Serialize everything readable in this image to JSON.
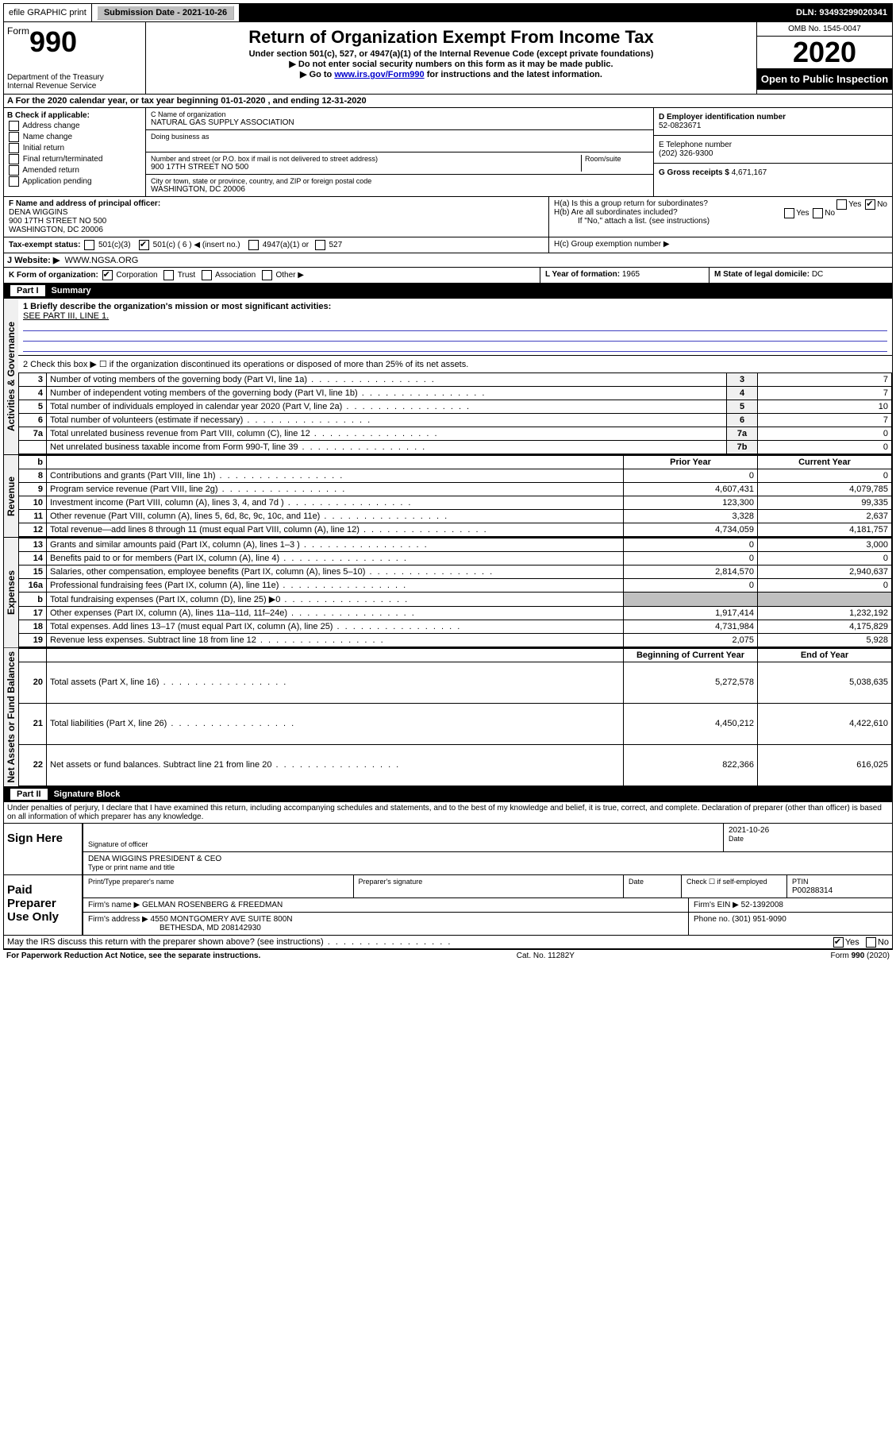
{
  "topbar": {
    "efile": "efile GRAPHIC print",
    "sub_label": "Submission Date - 2021-10-26",
    "dln": "DLN: 93493299020341"
  },
  "header": {
    "form_label": "Form",
    "form_number": "990",
    "dept1": "Department of the Treasury",
    "dept2": "Internal Revenue Service",
    "title": "Return of Organization Exempt From Income Tax",
    "subtitle": "Under section 501(c), 527, or 4947(a)(1) of the Internal Revenue Code (except private foundations)",
    "warn1": "▶ Do not enter social security numbers on this form as it may be made public.",
    "warn2a": "▶ Go to ",
    "warn2_link": "www.irs.gov/Form990",
    "warn2b": " for instructions and the latest information.",
    "omb": "OMB No. 1545-0047",
    "year": "2020",
    "inspect": "Open to Public Inspection"
  },
  "lineA": "A For the 2020 calendar year, or tax year beginning 01-01-2020   , and ending 12-31-2020",
  "boxB": {
    "label": "B Check if applicable:",
    "opts": [
      "Address change",
      "Name change",
      "Initial return",
      "Final return/terminated",
      "Amended return",
      "Application pending"
    ]
  },
  "boxC": {
    "name_label": "C Name of organization",
    "name": "NATURAL GAS SUPPLY ASSOCIATION",
    "dba_label": "Doing business as",
    "addr_label": "Number and street (or P.O. box if mail is not delivered to street address)",
    "room_label": "Room/suite",
    "addr": "900 17TH STREET NO 500",
    "city_label": "City or town, state or province, country, and ZIP or foreign postal code",
    "city": "WASHINGTON, DC  20006"
  },
  "boxD": {
    "label": "D Employer identification number",
    "value": "52-0823671"
  },
  "boxE": {
    "label": "E Telephone number",
    "value": "(202) 326-9300"
  },
  "boxG": {
    "label": "G Gross receipts $",
    "value": "4,671,167"
  },
  "boxF": {
    "label": "F Name and address of principal officer:",
    "name": "DENA WIGGINS",
    "addr1": "900 17TH STREET NO 500",
    "addr2": "WASHINGTON, DC  20006"
  },
  "boxH": {
    "a": "H(a)  Is this a group return for subordinates?",
    "b": "H(b)  Are all subordinates included?",
    "bnote": "If \"No,\" attach a list. (see instructions)",
    "c": "H(c)  Group exemption number ▶"
  },
  "boxI": {
    "label": "Tax-exempt status:",
    "c3": "501(c)(3)",
    "c": "501(c) ( 6 ) ◀ (insert no.)",
    "a4947": "4947(a)(1) or",
    "s527": "527"
  },
  "boxJ": {
    "label": "J   Website: ▶",
    "value": "WWW.NGSA.ORG"
  },
  "boxK": {
    "label": "K Form of organization:",
    "corp": "Corporation",
    "trust": "Trust",
    "assoc": "Association",
    "other": "Other ▶"
  },
  "boxL": {
    "label": "L Year of formation:",
    "value": "1965"
  },
  "boxM": {
    "label": "M State of legal domicile:",
    "value": "DC"
  },
  "parts": {
    "p1": "Part I",
    "p1_title": "Summary",
    "p2": "Part II",
    "p2_title": "Signature Block"
  },
  "summary": {
    "line1_label": "1  Briefly describe the organization's mission or most significant activities:",
    "line1_text": "SEE PART III, LINE 1.",
    "line2": "2    Check this box ▶ ☐  if the organization discontinued its operations or disposed of more than 25% of its net assets."
  },
  "vert": {
    "gov": "Activities & Governance",
    "rev": "Revenue",
    "exp": "Expenses",
    "net": "Net Assets or Fund Balances"
  },
  "gov_rows": [
    {
      "n": "3",
      "desc": "Number of voting members of the governing body (Part VI, line 1a)",
      "box": "3",
      "val": "7"
    },
    {
      "n": "4",
      "desc": "Number of independent voting members of the governing body (Part VI, line 1b)",
      "box": "4",
      "val": "7"
    },
    {
      "n": "5",
      "desc": "Total number of individuals employed in calendar year 2020 (Part V, line 2a)",
      "box": "5",
      "val": "10"
    },
    {
      "n": "6",
      "desc": "Total number of volunteers (estimate if necessary)",
      "box": "6",
      "val": "7"
    },
    {
      "n": "7a",
      "desc": "Total unrelated business revenue from Part VIII, column (C), line 12",
      "box": "7a",
      "val": "0"
    },
    {
      "n": "",
      "desc": "Net unrelated business taxable income from Form 990-T, line 39",
      "box": "7b",
      "val": "0"
    }
  ],
  "col_headers": {
    "b": "b",
    "prior": "Prior Year",
    "current": "Current Year",
    "beg": "Beginning of Current Year",
    "end": "End of Year"
  },
  "rev_rows": [
    {
      "n": "8",
      "desc": "Contributions and grants (Part VIII, line 1h)",
      "py": "0",
      "cy": "0"
    },
    {
      "n": "9",
      "desc": "Program service revenue (Part VIII, line 2g)",
      "py": "4,607,431",
      "cy": "4,079,785"
    },
    {
      "n": "10",
      "desc": "Investment income (Part VIII, column (A), lines 3, 4, and 7d )",
      "py": "123,300",
      "cy": "99,335"
    },
    {
      "n": "11",
      "desc": "Other revenue (Part VIII, column (A), lines 5, 6d, 8c, 9c, 10c, and 11e)",
      "py": "3,328",
      "cy": "2,637"
    },
    {
      "n": "12",
      "desc": "Total revenue—add lines 8 through 11 (must equal Part VIII, column (A), line 12)",
      "py": "4,734,059",
      "cy": "4,181,757"
    }
  ],
  "exp_rows": [
    {
      "n": "13",
      "desc": "Grants and similar amounts paid (Part IX, column (A), lines 1–3 )",
      "py": "0",
      "cy": "3,000"
    },
    {
      "n": "14",
      "desc": "Benefits paid to or for members (Part IX, column (A), line 4)",
      "py": "0",
      "cy": "0"
    },
    {
      "n": "15",
      "desc": "Salaries, other compensation, employee benefits (Part IX, column (A), lines 5–10)",
      "py": "2,814,570",
      "cy": "2,940,637"
    },
    {
      "n": "16a",
      "desc": "Professional fundraising fees (Part IX, column (A), line 11e)",
      "py": "0",
      "cy": "0"
    },
    {
      "n": "b",
      "desc": "Total fundraising expenses (Part IX, column (D), line 25) ▶0",
      "py": "",
      "cy": "",
      "shade": true
    },
    {
      "n": "17",
      "desc": "Other expenses (Part IX, column (A), lines 11a–11d, 11f–24e)",
      "py": "1,917,414",
      "cy": "1,232,192"
    },
    {
      "n": "18",
      "desc": "Total expenses. Add lines 13–17 (must equal Part IX, column (A), line 25)",
      "py": "4,731,984",
      "cy": "4,175,829"
    },
    {
      "n": "19",
      "desc": "Revenue less expenses. Subtract line 18 from line 12",
      "py": "2,075",
      "cy": "5,928"
    }
  ],
  "net_rows": [
    {
      "n": "20",
      "desc": "Total assets (Part X, line 16)",
      "py": "5,272,578",
      "cy": "5,038,635"
    },
    {
      "n": "21",
      "desc": "Total liabilities (Part X, line 26)",
      "py": "4,450,212",
      "cy": "4,422,610"
    },
    {
      "n": "22",
      "desc": "Net assets or fund balances. Subtract line 21 from line 20",
      "py": "822,366",
      "cy": "616,025"
    }
  ],
  "sig_decl": "Under penalties of perjury, I declare that I have examined this return, including accompanying schedules and statements, and to the best of my knowledge and belief, it is true, correct, and complete. Declaration of preparer (other than officer) is based on all information of which preparer has any knowledge.",
  "sign": {
    "here": "Sign Here",
    "sig_label": "Signature of officer",
    "date_label": "Date",
    "date": "2021-10-26",
    "name": "DENA WIGGINS PRESIDENT & CEO",
    "name_label": "Type or print name and title"
  },
  "paid": {
    "here": "Paid Preparer Use Only",
    "col1": "Print/Type preparer's name",
    "col2": "Preparer's signature",
    "col3": "Date",
    "col4a": "Check ☐ if self-employed",
    "col5a": "PTIN",
    "col5b": "P00288314",
    "firm_label": "Firm's name    ▶",
    "firm": "GELMAN ROSENBERG & FREEDMAN",
    "ein_label": "Firm's EIN ▶",
    "ein": "52-1392008",
    "addr_label": "Firm's address ▶",
    "addr1": "4550 MONTGOMERY AVE SUITE 800N",
    "addr2": "BETHESDA, MD  208142930",
    "phone_label": "Phone no.",
    "phone": "(301) 951-9090"
  },
  "discuss": "May the IRS discuss this return with the preparer shown above? (see instructions)",
  "footer": {
    "left": "For Paperwork Reduction Act Notice, see the separate instructions.",
    "mid": "Cat. No. 11282Y",
    "right": "Form 990 (2020)"
  },
  "yes": "Yes",
  "no": "No"
}
